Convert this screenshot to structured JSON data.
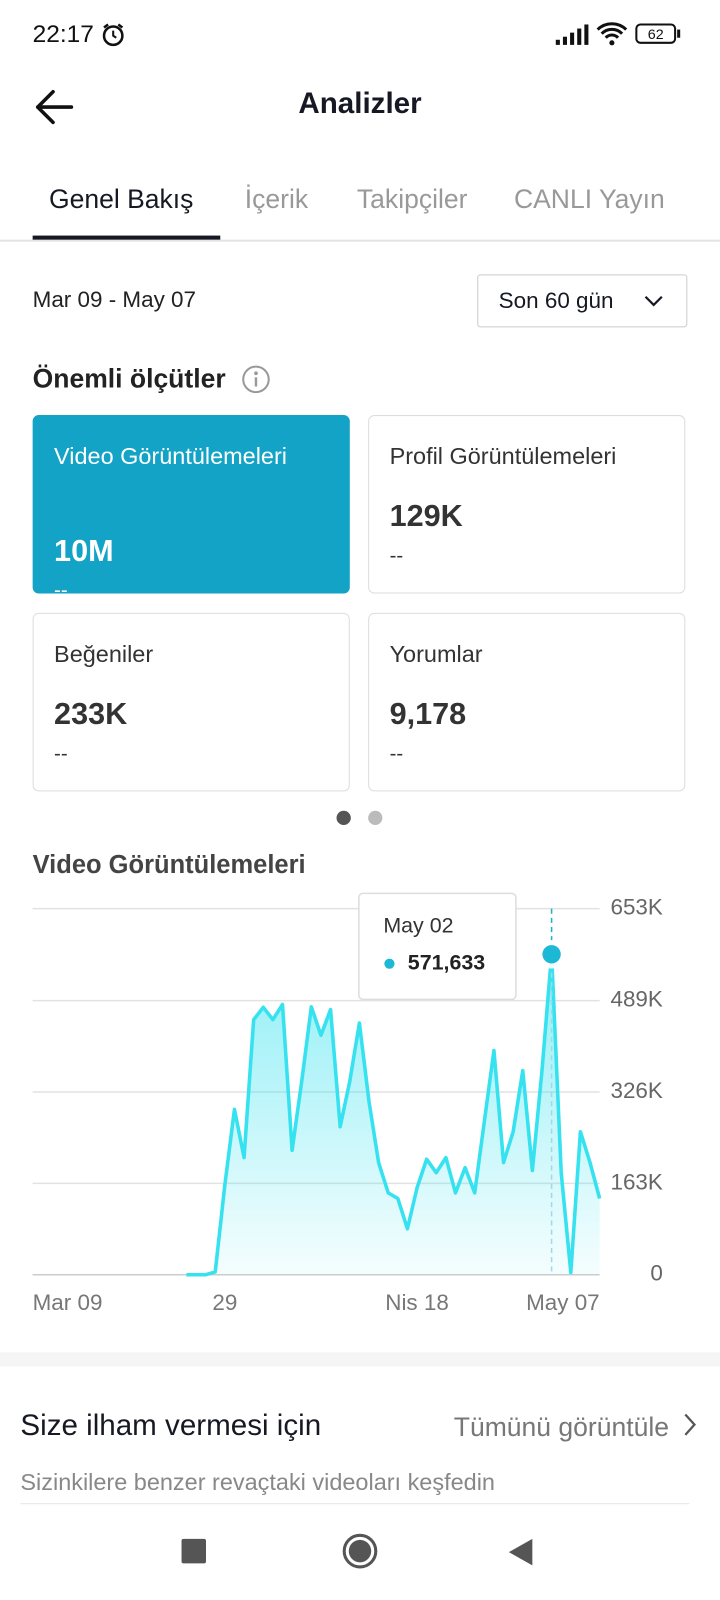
{
  "status_bar": {
    "time": "22:17",
    "battery": "62"
  },
  "header": {
    "title": "Analizler"
  },
  "tabs": [
    "Genel Bakış",
    "İçerik",
    "Takipçiler",
    "CANLI Yayın"
  ],
  "date_range": "Mar 09 - May 07",
  "period_select": "Son 60 gün",
  "metrics": {
    "title": "Önemli ölçütler",
    "cards": [
      {
        "label": "Video Görüntülemeleri",
        "value": "10M",
        "change": "--"
      },
      {
        "label": "Profil Görüntülemeleri",
        "value": "129K",
        "change": "--"
      },
      {
        "label": "Beğeniler",
        "value": "233K",
        "change": "--"
      },
      {
        "label": "Yorumlar",
        "value": "9,178",
        "change": "--"
      }
    ]
  },
  "chart_data": {
    "type": "line",
    "title": "Video Görüntülemeleri",
    "categories": [
      "Mar 09",
      null,
      null,
      null,
      null,
      null,
      null,
      null,
      null,
      null,
      null,
      null,
      null,
      null,
      null,
      null,
      null,
      null,
      null,
      null,
      "29",
      null,
      null,
      null,
      null,
      null,
      null,
      null,
      null,
      null,
      null,
      null,
      null,
      null,
      null,
      null,
      null,
      null,
      null,
      null,
      "Nis 18",
      null,
      null,
      null,
      null,
      null,
      null,
      null,
      null,
      null,
      null,
      null,
      null,
      null,
      null,
      null,
      null,
      null,
      null,
      "May 07"
    ],
    "values": [
      null,
      null,
      null,
      null,
      null,
      null,
      null,
      null,
      null,
      null,
      null,
      null,
      null,
      null,
      null,
      null,
      0,
      0,
      0,
      5000,
      160000,
      295000,
      209000,
      455000,
      477000,
      455000,
      482000,
      222000,
      345000,
      478000,
      427000,
      473000,
      264000,
      345000,
      449000,
      309000,
      200000,
      146000,
      136000,
      82000,
      155000,
      206000,
      182000,
      209000,
      146000,
      191000,
      146000,
      273000,
      400000,
      200000,
      255000,
      364000,
      186000,
      364000,
      571633,
      182000,
      4000,
      255000,
      200000,
      136000
    ],
    "color": "#36e2ef",
    "ylim": [
      0,
      653000
    ],
    "yticks": [
      0,
      {
        "value": 163000,
        "label": "163K"
      },
      {
        "value": 326000,
        "label": "326K"
      },
      {
        "value": 489000,
        "label": "489K"
      },
      {
        "value": 653000,
        "label": "653K"
      }
    ],
    "grid": true,
    "tooltip": {
      "label": "May 02",
      "value": 571633,
      "value_label": "571,633"
    }
  },
  "inspiration": {
    "title": "Size ilham vermesi için",
    "link": "Tümünü görüntüle",
    "subtitle": "Sizinkilere benzer revaçtaki videoları keşfedin"
  }
}
